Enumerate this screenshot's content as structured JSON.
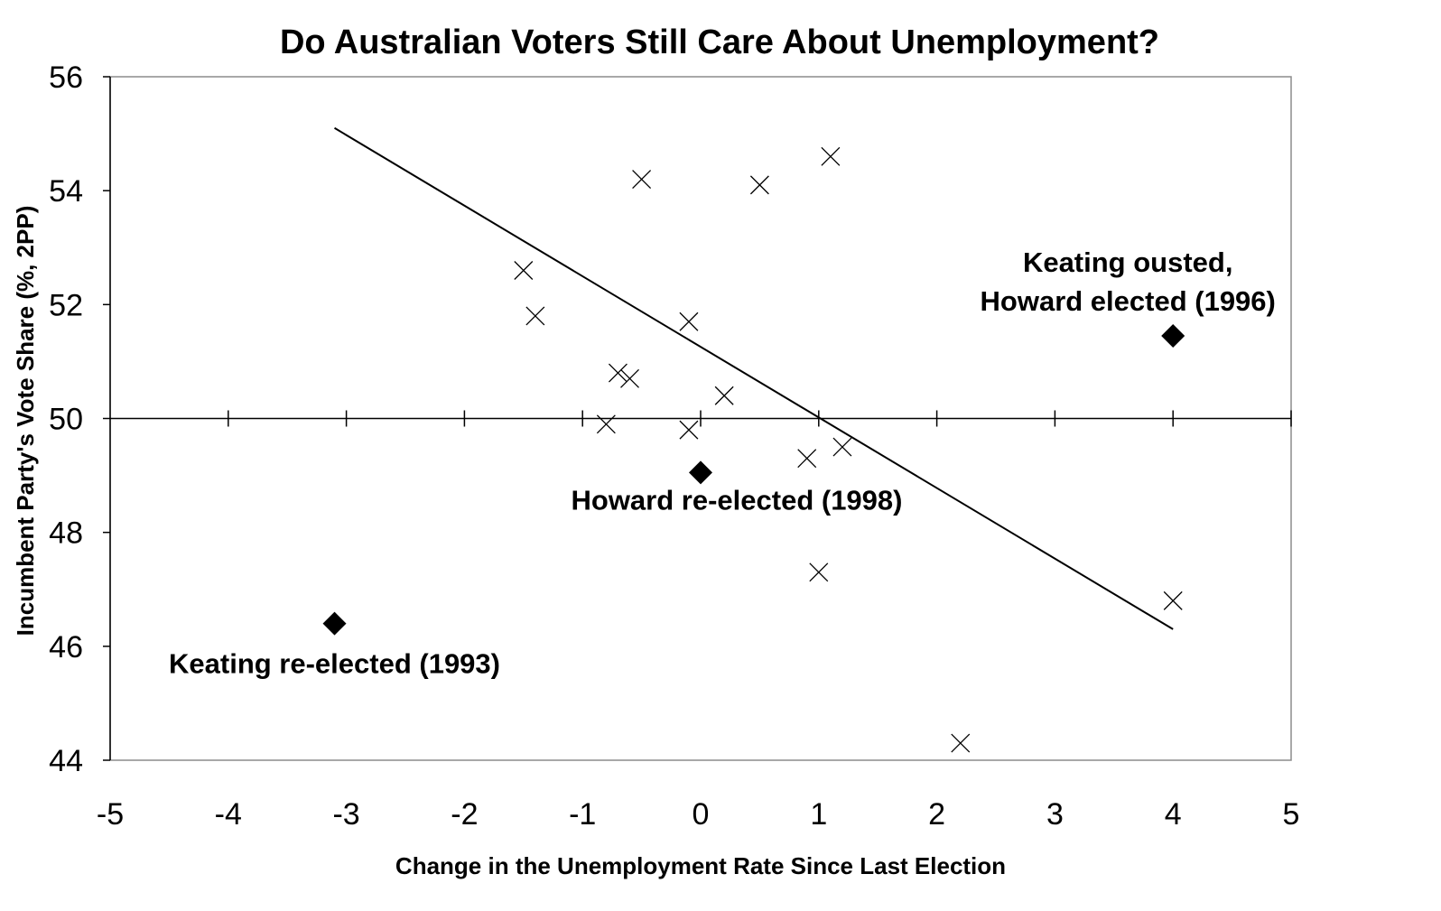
{
  "chart_data": {
    "type": "scatter",
    "title": "Do Australian Voters Still Care About Unemployment?",
    "xlabel": "Change in the Unemployment Rate Since Last Election",
    "ylabel": "Incumbent Party's Vote Share (%, 2PP)",
    "xlim": [
      -5,
      5
    ],
    "ylim": [
      44,
      56
    ],
    "x_ticks": [
      "-5",
      "-4",
      "-3",
      "-2",
      "-1",
      "0",
      "1",
      "2",
      "3",
      "4",
      "5"
    ],
    "y_ticks": [
      "44",
      "46",
      "48",
      "50",
      "52",
      "54",
      "56"
    ],
    "reference_line_y": 50,
    "grid": false,
    "legend": "none",
    "series": [
      {
        "marker": "x",
        "points": [
          {
            "x": -1.5,
            "y": 52.6
          },
          {
            "x": -1.4,
            "y": 51.8
          },
          {
            "x": -0.7,
            "y": 50.8
          },
          {
            "x": -0.6,
            "y": 50.7
          },
          {
            "x": -0.8,
            "y": 49.9
          },
          {
            "x": -0.5,
            "y": 54.2
          },
          {
            "x": -0.1,
            "y": 51.7
          },
          {
            "x": -0.1,
            "y": 49.8
          },
          {
            "x": 0.2,
            "y": 50.4
          },
          {
            "x": 0.5,
            "y": 54.1
          },
          {
            "x": 0.9,
            "y": 49.3
          },
          {
            "x": 1.1,
            "y": 54.6
          },
          {
            "x": 1.2,
            "y": 49.5
          },
          {
            "x": 1.0,
            "y": 47.3
          },
          {
            "x": 2.2,
            "y": 44.3
          },
          {
            "x": 4.0,
            "y": 46.8
          }
        ]
      },
      {
        "marker": "diamond",
        "points": [
          {
            "x": -3.1,
            "y": 46.4,
            "label": "Keating re-elected (1993)"
          },
          {
            "x": 0.0,
            "y": 49.05,
            "label": "Howard re-elected (1998)"
          },
          {
            "x": 4.0,
            "y": 51.45,
            "label_lines": [
              "Keating ousted,",
              "Howard elected (1996)"
            ]
          }
        ]
      }
    ],
    "trendline": {
      "x": [
        -3.1,
        4.0
      ],
      "y": [
        55.1,
        46.3
      ]
    }
  }
}
